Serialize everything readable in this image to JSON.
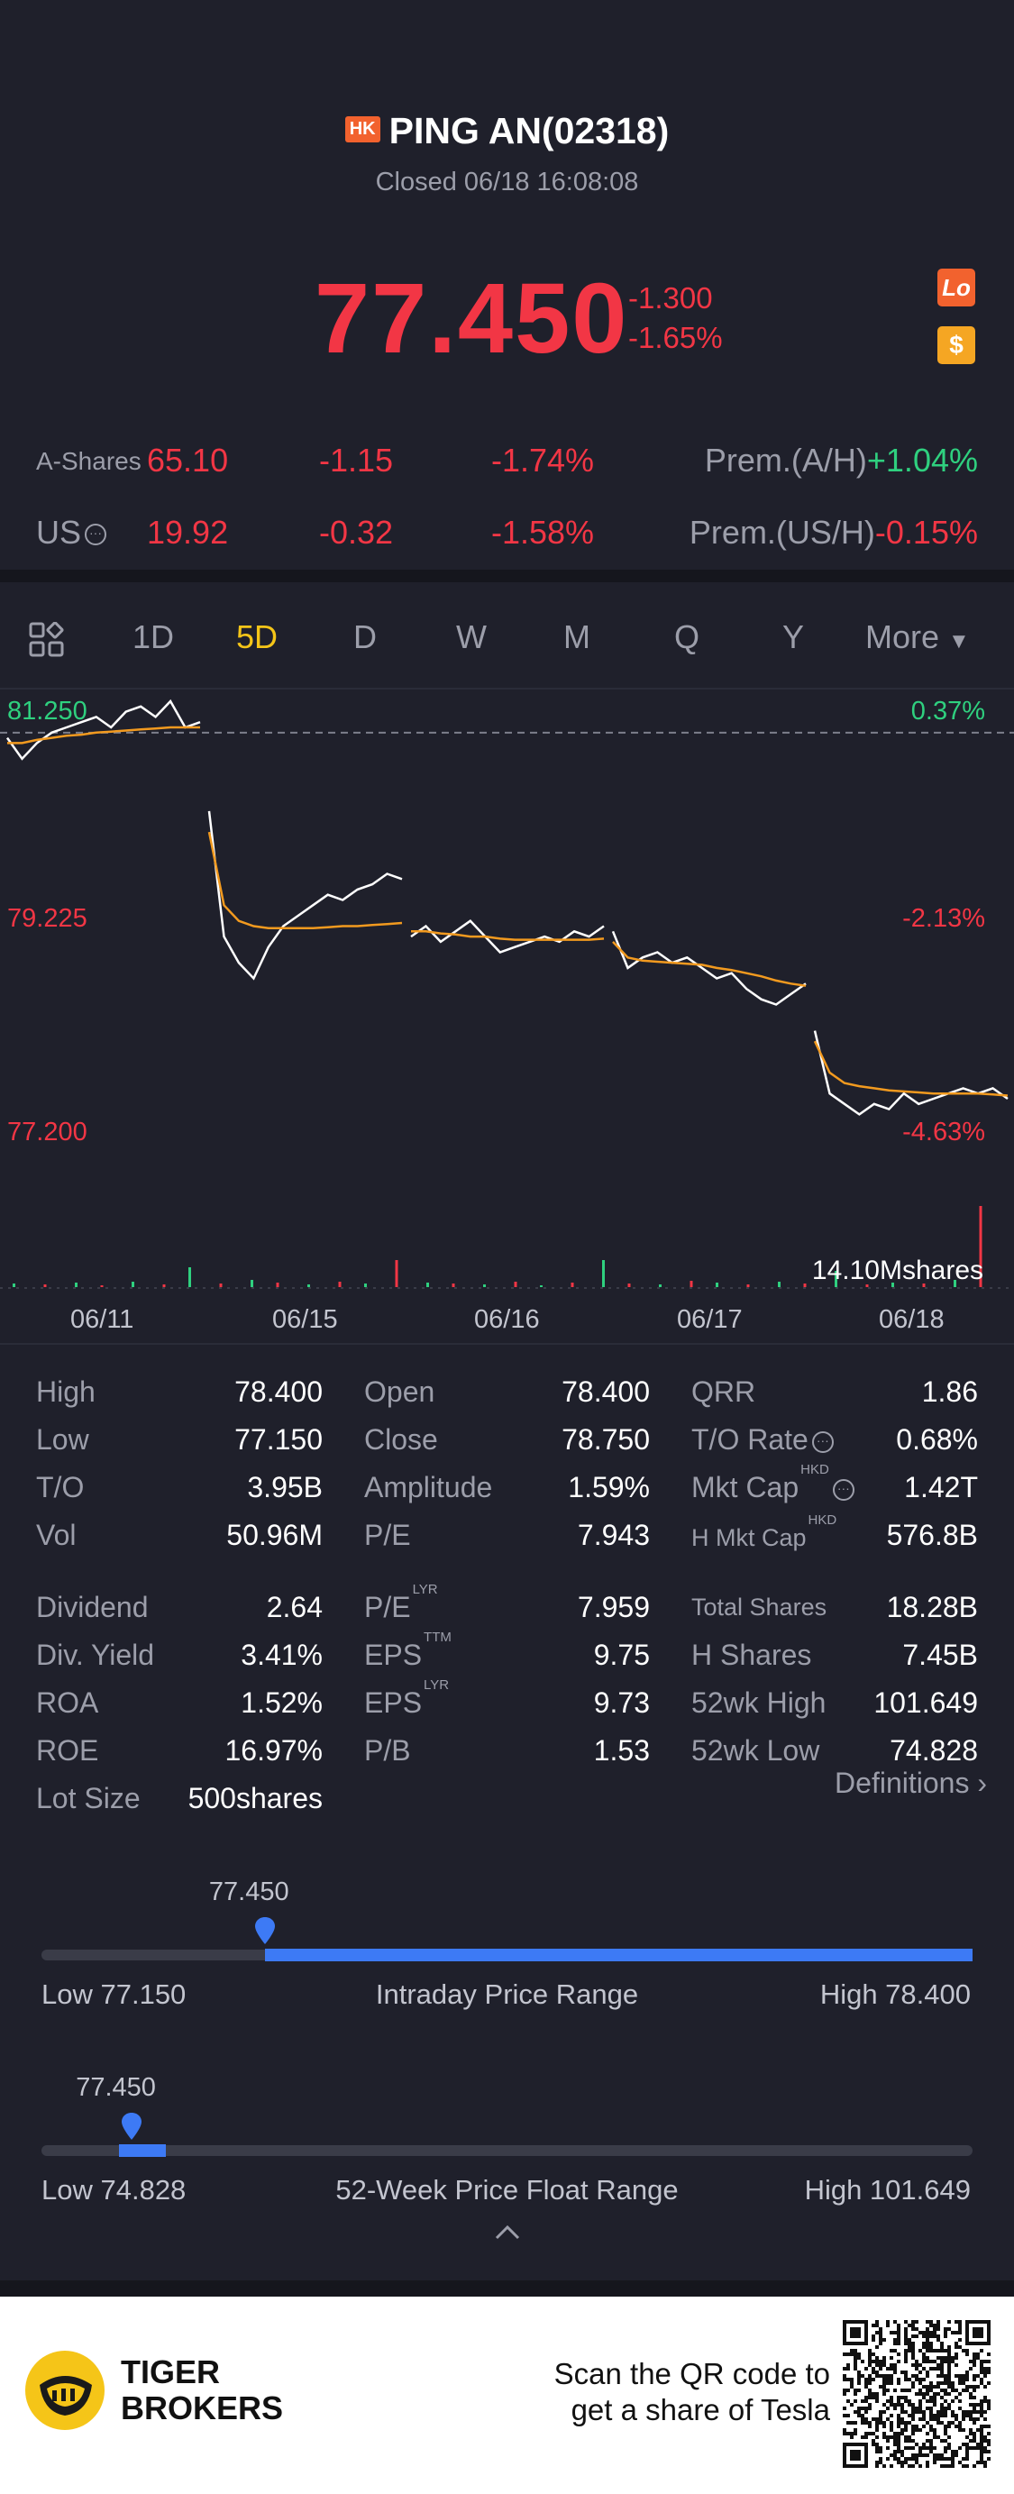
{
  "header": {
    "market_badge": "HK",
    "title": "PING AN(02318)",
    "status": "Closed 06/18 16:08:08",
    "price": "77.450",
    "change": "-1.300",
    "change_pct": "-1.65%",
    "lo_icon_label": "Lo",
    "dollar_icon_label": "$"
  },
  "quotes": {
    "a_shares": {
      "label": "A-Shares",
      "price": "65.10",
      "change": "-1.15",
      "pct": "-1.74%",
      "prem_label": "Prem.(A/H)",
      "prem_value": "+1.04%"
    },
    "us": {
      "label": "US",
      "price": "19.92",
      "change": "-0.32",
      "pct": "-1.58%",
      "prem_label": "Prem.(US/H)",
      "prem_value": "-0.15%"
    }
  },
  "tabs": [
    "1D",
    "5D",
    "D",
    "W",
    "M",
    "Q",
    "Y",
    "More"
  ],
  "active_tab": "5D",
  "chart_data": {
    "type": "line",
    "y_labels": {
      "top": "81.250",
      "mid": "79.225",
      "bottom": "77.200"
    },
    "pct_labels": {
      "top": "0.37%",
      "mid": "-2.13%",
      "bottom": "-4.63%"
    },
    "ylim": [
      77.2,
      81.25
    ],
    "prev_close": 80.95,
    "x_dates": [
      "06/11",
      "06/15",
      "06/16",
      "06/17",
      "06/18"
    ],
    "volume_label": "14.10Mshares",
    "series": [
      {
        "color": "#ffffff",
        "days": [
          [
            80.9,
            80.7,
            80.85,
            80.95,
            81.0,
            81.05,
            81.1,
            81.0,
            81.15,
            81.2,
            81.1,
            81.25,
            81.0,
            81.05
          ],
          [
            80.2,
            79.0,
            78.75,
            78.6,
            78.9,
            79.1,
            79.2,
            79.3,
            79.4,
            79.35,
            79.45,
            79.5,
            79.6,
            79.55
          ],
          [
            79.0,
            79.1,
            78.95,
            79.05,
            79.15,
            79.0,
            78.85,
            78.9,
            78.95,
            79.0,
            78.95,
            79.05,
            79.0,
            79.1
          ],
          [
            79.05,
            78.7,
            78.8,
            78.85,
            78.75,
            78.8,
            78.7,
            78.6,
            78.65,
            78.5,
            78.4,
            78.35,
            78.45,
            78.55
          ],
          [
            78.1,
            77.5,
            77.4,
            77.3,
            77.4,
            77.35,
            77.5,
            77.4,
            77.45,
            77.5,
            77.55,
            77.5,
            77.55,
            77.45
          ]
        ]
      },
      {
        "color": "#f29a1f",
        "days": [
          [
            80.85,
            80.85,
            80.88,
            80.9,
            80.92,
            80.93,
            80.95,
            80.96,
            80.97,
            80.98,
            80.99,
            81.0,
            81.0,
            81.0
          ],
          [
            80.0,
            79.3,
            79.15,
            79.1,
            79.08,
            79.08,
            79.08,
            79.08,
            79.09,
            79.1,
            79.1,
            79.11,
            79.12,
            79.13
          ],
          [
            79.05,
            79.05,
            79.03,
            79.02,
            79.0,
            79.0,
            78.98,
            78.97,
            78.97,
            78.97,
            78.97,
            78.97,
            78.97,
            78.98
          ],
          [
            78.95,
            78.8,
            78.77,
            78.76,
            78.75,
            78.74,
            78.73,
            78.7,
            78.68,
            78.65,
            78.62,
            78.58,
            78.55,
            78.53
          ],
          [
            78.0,
            77.7,
            77.6,
            77.57,
            77.55,
            77.53,
            77.52,
            77.51,
            77.5,
            77.5,
            77.5,
            77.5,
            77.49,
            77.48
          ]
        ]
      }
    ]
  },
  "stats": {
    "col1": [
      {
        "label": "High",
        "value": "78.400"
      },
      {
        "label": "Low",
        "value": "77.150"
      },
      {
        "label": "T/O",
        "value": "3.95B"
      },
      {
        "label": "Vol",
        "value": "50.96M"
      },
      {
        "label": "Dividend",
        "value": "2.64"
      },
      {
        "label": "Div. Yield",
        "value": "3.41%"
      },
      {
        "label": "ROA",
        "value": "1.52%"
      },
      {
        "label": "ROE",
        "value": "16.97%"
      },
      {
        "label": "Lot Size",
        "value": "500shares"
      }
    ],
    "col2": [
      {
        "label": "Open",
        "value": "78.400"
      },
      {
        "label": "Close",
        "value": "78.750"
      },
      {
        "label": "Amplitude",
        "value": "1.59%"
      },
      {
        "label": "P/E",
        "value": "7.943"
      },
      {
        "label": "P/E",
        "sup": "LYR",
        "value": "7.959"
      },
      {
        "label": "EPS",
        "sup": "TTM",
        "value": "9.75"
      },
      {
        "label": "EPS",
        "sup": "LYR",
        "value": "9.73"
      },
      {
        "label": "P/B",
        "value": "1.53"
      }
    ],
    "col3": [
      {
        "label": "QRR",
        "value": "1.86"
      },
      {
        "label": "T/O Rate",
        "value": "0.68%"
      },
      {
        "label": "Mkt Cap",
        "sup": "HKD",
        "value": "1.42T"
      },
      {
        "label": "H Mkt Cap",
        "sup": "HKD",
        "value": "576.8B"
      },
      {
        "label": "Total Shares",
        "value": "18.28B"
      },
      {
        "label": "H Shares",
        "value": "7.45B"
      },
      {
        "label": "52wk High",
        "value": "101.649"
      },
      {
        "label": "52wk Low",
        "value": "74.828"
      }
    ],
    "definitions_link": "Definitions"
  },
  "intraday_range": {
    "current": "77.450",
    "low_label": "Low 77.150",
    "title": "Intraday Price Range",
    "high_label": "High 78.400",
    "position": 0.24
  },
  "week52_range": {
    "current": "77.450",
    "low_label": "Low 74.828",
    "title": "52-Week Price Float Range",
    "high_label": "High 101.649",
    "position": 0.097
  },
  "footer": {
    "brand_line1": "TIGER",
    "brand_line2": "BROKERS",
    "scan_line1": "Scan the QR code to",
    "scan_line2": "get a share of Tesla"
  },
  "colors": {
    "up": "#2fd07f",
    "down": "#f23645",
    "accent": "#f5c518",
    "bar": "#3d7af5",
    "background": "#1f202b"
  }
}
